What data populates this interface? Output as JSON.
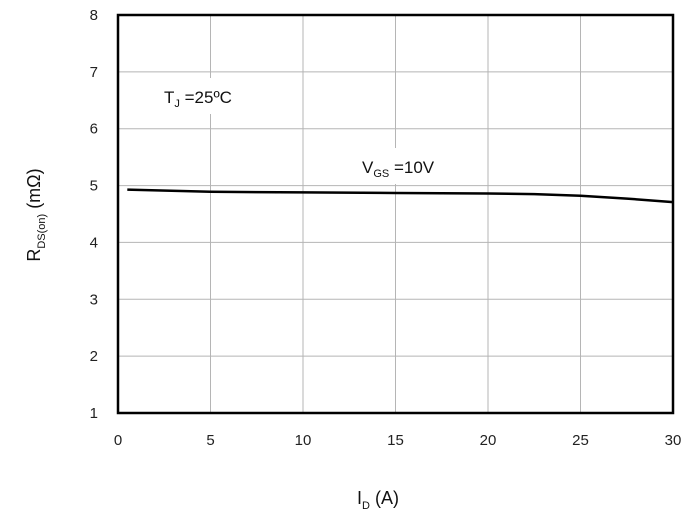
{
  "chart_data": {
    "type": "line",
    "title": "",
    "xlabel": {
      "main": "I",
      "sub": "D",
      "rest": " (A)"
    },
    "ylabel": {
      "main": "R",
      "sub": "DS(on)",
      "rest": " (mΩ)"
    },
    "xlim": [
      0,
      30
    ],
    "ylim": [
      1,
      8
    ],
    "xticks": [
      0,
      5,
      10,
      15,
      20,
      25,
      30
    ],
    "yticks": [
      1,
      2,
      3,
      4,
      5,
      6,
      7,
      8
    ],
    "grid": true,
    "annotations": [
      {
        "main": "T",
        "sub": "J",
        "rest": " =25ºC"
      },
      {
        "main": "V",
        "sub": "GS",
        "rest": " =10V"
      }
    ],
    "series": [
      {
        "x": [
          0.5,
          5,
          10,
          15,
          20,
          22.5,
          25,
          27.5,
          30
        ],
        "y": [
          4.93,
          4.89,
          4.88,
          4.87,
          4.86,
          4.85,
          4.82,
          4.77,
          4.71
        ]
      }
    ]
  }
}
